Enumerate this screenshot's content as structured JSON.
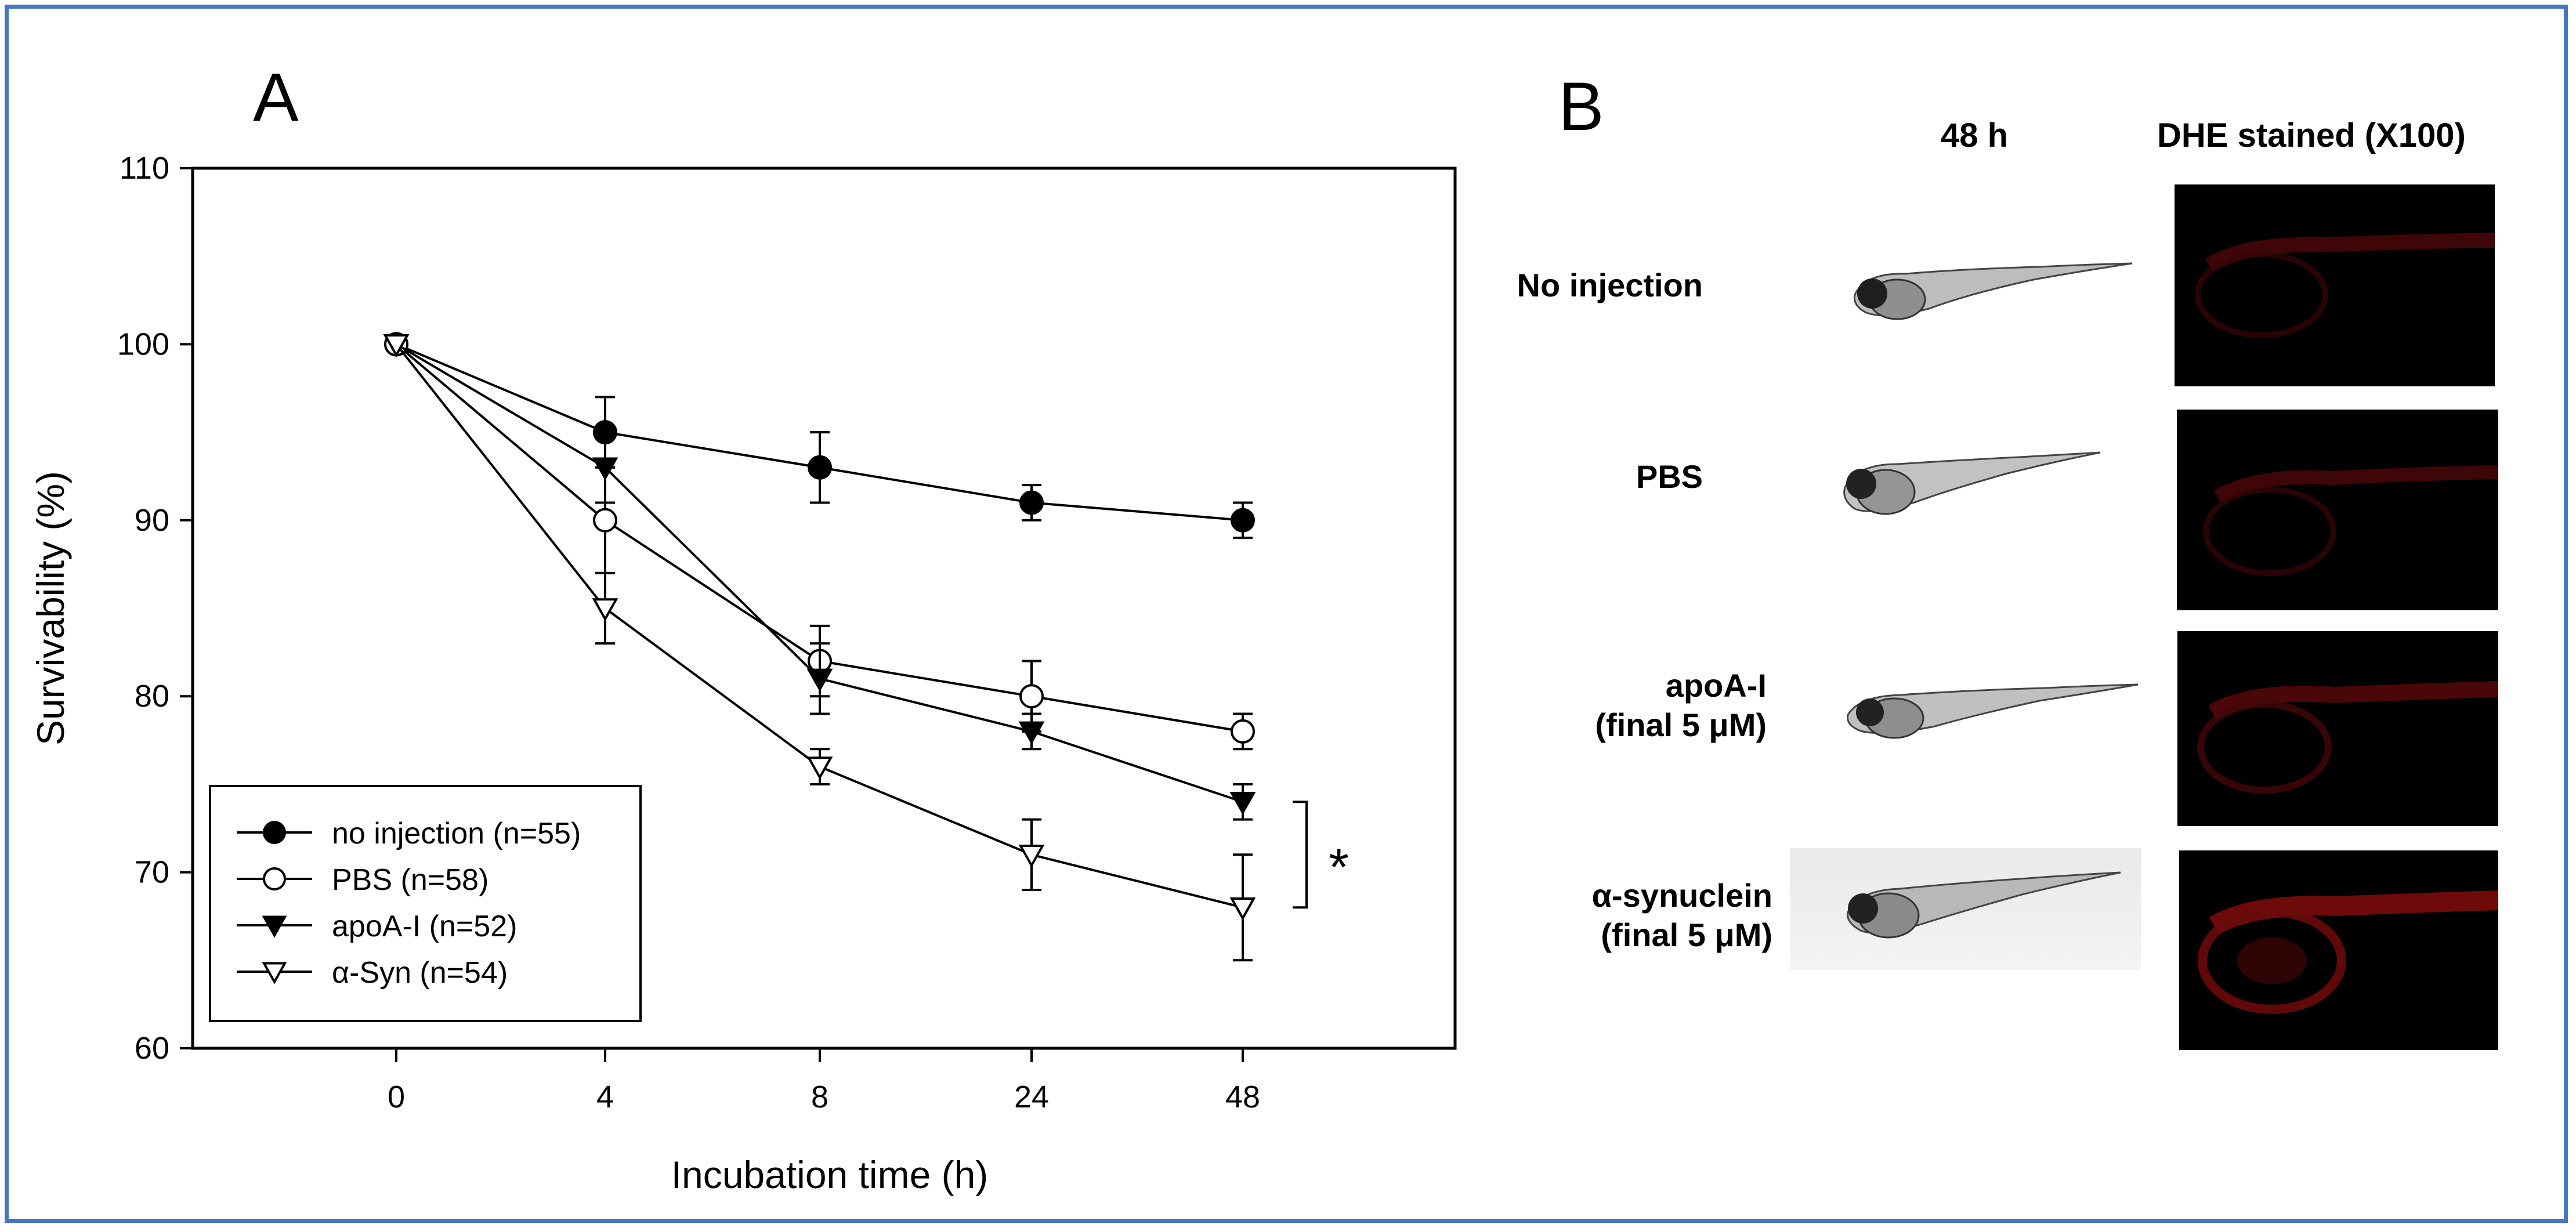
{
  "panel_a": {
    "letter": "A",
    "chart_data": {
      "type": "line",
      "title": "",
      "xlabel": "Incubation time (h)",
      "ylabel": "Survivability (%)",
      "categories": [
        "0",
        "4",
        "8",
        "24",
        "48"
      ],
      "ylim": [
        60,
        110
      ],
      "yticks": [
        60,
        70,
        80,
        90,
        100,
        110
      ],
      "series": [
        {
          "name": "no injection (n=55)",
          "marker": "filled-circle",
          "values": [
            100,
            95,
            93,
            91,
            90
          ],
          "errors": [
            0,
            2,
            2,
            1,
            1
          ]
        },
        {
          "name": "PBS (n=58)",
          "marker": "open-circle",
          "values": [
            100,
            90,
            82,
            80,
            78
          ],
          "errors": [
            0,
            3,
            2,
            2,
            1
          ]
        },
        {
          "name": "apoA-I (n=52)",
          "marker": "filled-triangle-down",
          "values": [
            100,
            93,
            81,
            78,
            74
          ],
          "errors": [
            0,
            2,
            2,
            1,
            1
          ]
        },
        {
          "name": "α-Syn (n=54)",
          "marker": "open-triangle-down",
          "values": [
            100,
            85,
            76,
            71,
            68
          ],
          "errors": [
            0,
            2,
            1,
            2,
            3
          ]
        }
      ],
      "annotation": "*",
      "legend_position": "bottom-left",
      "grid": false
    }
  },
  "panel_b": {
    "letter": "B",
    "column_headers": [
      "48 h",
      "DHE stained  (X100)"
    ],
    "rows": [
      {
        "label_lines": [
          "No injection"
        ]
      },
      {
        "label_lines": [
          "PBS"
        ]
      },
      {
        "label_lines": [
          "apoA-I",
          "(final 5 μM)"
        ]
      },
      {
        "label_lines": [
          "α-synuclein",
          "(final 5 μM)"
        ]
      }
    ]
  },
  "colors": {
    "border": "#4a74c4",
    "axis": "#000000",
    "dhe_signal": "#8a0c0c"
  }
}
